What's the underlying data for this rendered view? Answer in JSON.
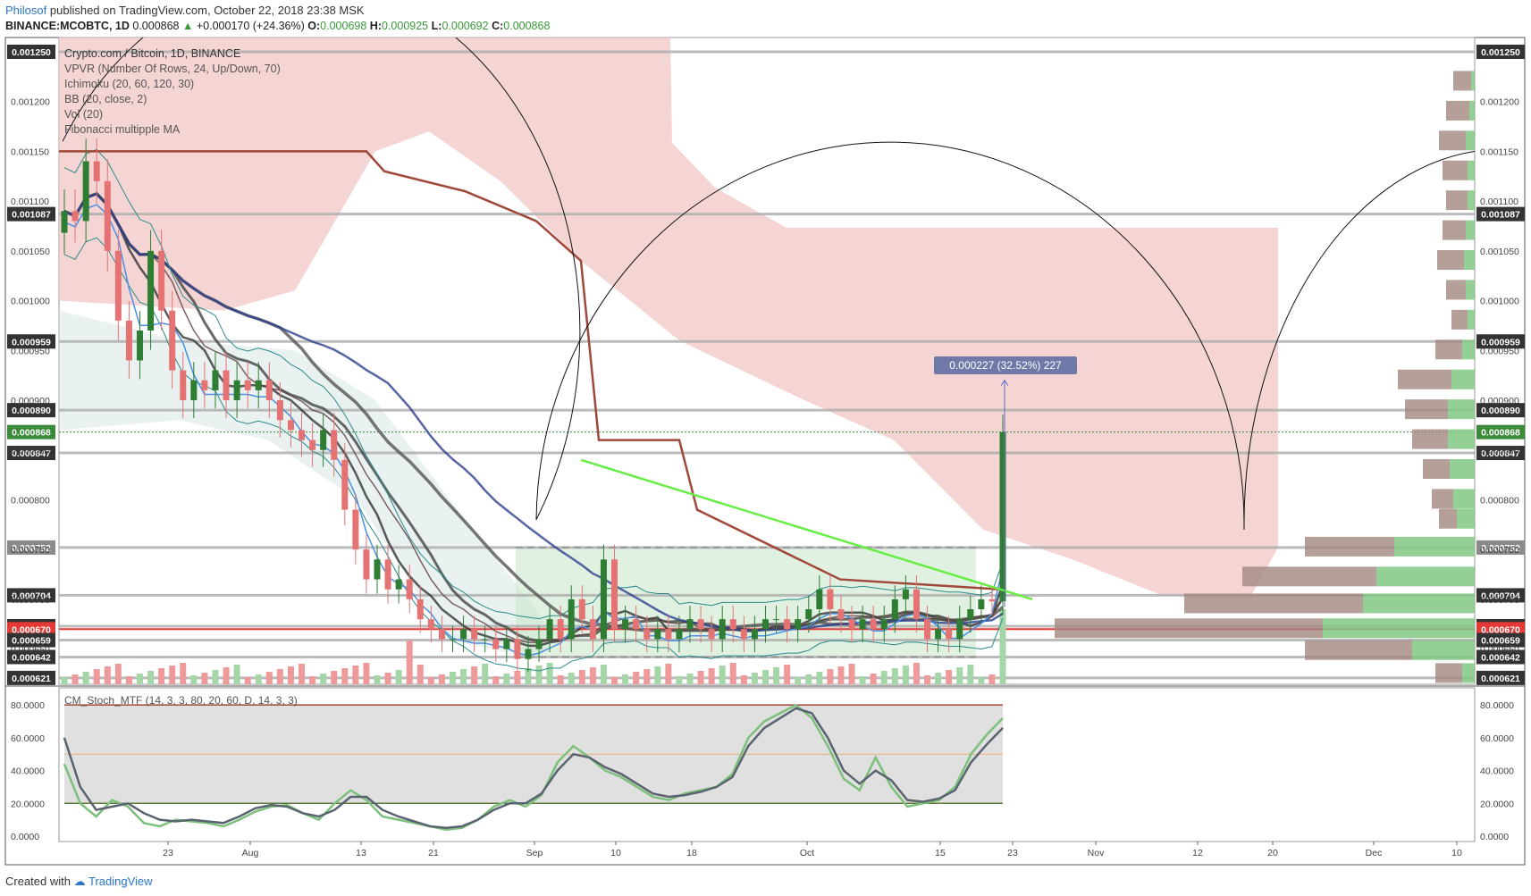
{
  "header": {
    "author": "Philosof",
    "published": "published on TradingView.com, October 22, 2018 23:38 MSK"
  },
  "ohlc": {
    "symbol": "BINANCE:MCOBTC, 1D",
    "last": "0.000868",
    "change": "+0.000170 (+24.36%)",
    "o_label": "O:",
    "o": "0.000698",
    "h_label": "H:",
    "h": "0.000925",
    "l_label": "L:",
    "l": "0.000692",
    "c_label": "C:",
    "c": "0.000868"
  },
  "legend": {
    "main": "Crypto.com / Bitcoin, 1D, BINANCE",
    "vpvr": "VPVR (Number Of Rows, 24, Up/Down, 70)",
    "ichimoku": "Ichimoku (20, 60, 120, 30)",
    "bb": "BB (20, close, 2)",
    "vol": "Vol (20)",
    "fib": "Fibonacci multipple MA"
  },
  "stoch_label": "CM_Stoch_MTF (14, 3, 3, 80, 20, 60, D, 14, 3, 3)",
  "measure_label": "0.000227 (32.52%) 227",
  "footer": {
    "created": "Created with",
    "brand": "TradingView"
  },
  "colors": {
    "up": "#4caf50",
    "down": "#e57373",
    "cloud": "#f2c6c6",
    "hline": "#9e9e9e",
    "red_line": "#e53935",
    "green_trend": "#66ee44"
  },
  "chart_data": {
    "type": "line",
    "x_ticks": [
      "23",
      "Aug",
      "13",
      "21",
      "Sep",
      "10",
      "18",
      "Oct",
      "15",
      "23",
      "Nov",
      "12",
      "20",
      "Dec",
      "10"
    ],
    "y_ticks": [
      "0.001200",
      "0.001150",
      "0.001100",
      "0.001050",
      "0.001000",
      "0.000950",
      "0.000900",
      "0.000850",
      "0.000800",
      "0.000750",
      "0.000700",
      "0.000650"
    ],
    "ylim": [
      0.00062,
      0.00126
    ],
    "price_levels": [
      {
        "label": "0.001250",
        "value": 0.00125,
        "kind": "level"
      },
      {
        "label": "0.001087",
        "value": 0.001087,
        "kind": "level"
      },
      {
        "label": "0.000959",
        "value": 0.000959,
        "kind": "level"
      },
      {
        "label": "0.000890",
        "value": 0.00089,
        "kind": "level"
      },
      {
        "label": "0.000868",
        "value": 0.000868,
        "kind": "last"
      },
      {
        "label": "0.000847",
        "value": 0.000847,
        "kind": "level"
      },
      {
        "label": "0.000752",
        "value": 0.000752,
        "kind": "level"
      },
      {
        "label": "0.000704",
        "value": 0.000704,
        "kind": "level"
      },
      {
        "label": "0.000673",
        "value": 0.000673,
        "kind": "level"
      },
      {
        "label": "0.000670",
        "value": 0.00067,
        "kind": "red"
      },
      {
        "label": "0.000659",
        "value": 0.000659,
        "kind": "level"
      },
      {
        "label": "0.000642",
        "value": 0.000642,
        "kind": "level"
      },
      {
        "label": "0.000621",
        "value": 0.000621,
        "kind": "level"
      }
    ],
    "close_series": [
      0.00109,
      0.00108,
      0.00114,
      0.00112,
      0.00105,
      0.00098,
      0.00094,
      0.00097,
      0.00105,
      0.00099,
      0.00093,
      0.0009,
      0.00092,
      0.00091,
      0.00093,
      0.0009,
      0.00092,
      0.00091,
      0.00092,
      0.0009,
      0.00088,
      0.00087,
      0.00086,
      0.00085,
      0.00087,
      0.00084,
      0.00079,
      0.00075,
      0.00072,
      0.00074,
      0.00071,
      0.00072,
      0.0007,
      0.00068,
      0.00067,
      0.00066,
      0.00066,
      0.00067,
      0.00066,
      0.00066,
      0.00065,
      0.00066,
      0.00064,
      0.00065,
      0.00066,
      0.00068,
      0.00066,
      0.0007,
      0.00068,
      0.00066,
      0.00074,
      0.00067,
      0.00068,
      0.00067,
      0.00066,
      0.00067,
      0.00066,
      0.00067,
      0.00068,
      0.00067,
      0.00066,
      0.00068,
      0.00067,
      0.00066,
      0.00067,
      0.00068,
      0.00068,
      0.00067,
      0.00068,
      0.00069,
      0.00071,
      0.00069,
      0.00068,
      0.00067,
      0.00068,
      0.00067,
      0.00068,
      0.0007,
      0.00071,
      0.00068,
      0.00066,
      0.00067,
      0.00066,
      0.00068,
      0.00069,
      0.0007,
      0.000698,
      0.000868
    ],
    "stoch": {
      "ylim": [
        0,
        85
      ],
      "y_ticks": [
        "80.0000",
        "60.0000",
        "40.0000",
        "20.0000",
        "0.0000"
      ],
      "k_values": [
        44,
        20,
        12,
        22,
        18,
        8,
        6,
        10,
        9,
        8,
        6,
        10,
        15,
        18,
        19,
        14,
        10,
        20,
        28,
        22,
        12,
        10,
        8,
        6,
        4,
        5,
        10,
        18,
        22,
        18,
        25,
        45,
        55,
        48,
        40,
        36,
        30,
        24,
        22,
        26,
        28,
        30,
        38,
        60,
        70,
        75,
        80,
        72,
        55,
        35,
        28,
        48,
        30,
        18,
        20,
        22,
        30,
        50,
        62,
        72
      ],
      "d_values": [
        60,
        30,
        16,
        18,
        20,
        14,
        10,
        9,
        10,
        9,
        8,
        12,
        17,
        19,
        18,
        14,
        12,
        16,
        24,
        24,
        16,
        12,
        9,
        6,
        5,
        6,
        10,
        16,
        20,
        20,
        26,
        40,
        50,
        48,
        42,
        38,
        32,
        26,
        24,
        25,
        27,
        30,
        36,
        55,
        66,
        72,
        78,
        75,
        60,
        40,
        32,
        40,
        34,
        22,
        21,
        23,
        28,
        45,
        56,
        66
      ]
    }
  }
}
